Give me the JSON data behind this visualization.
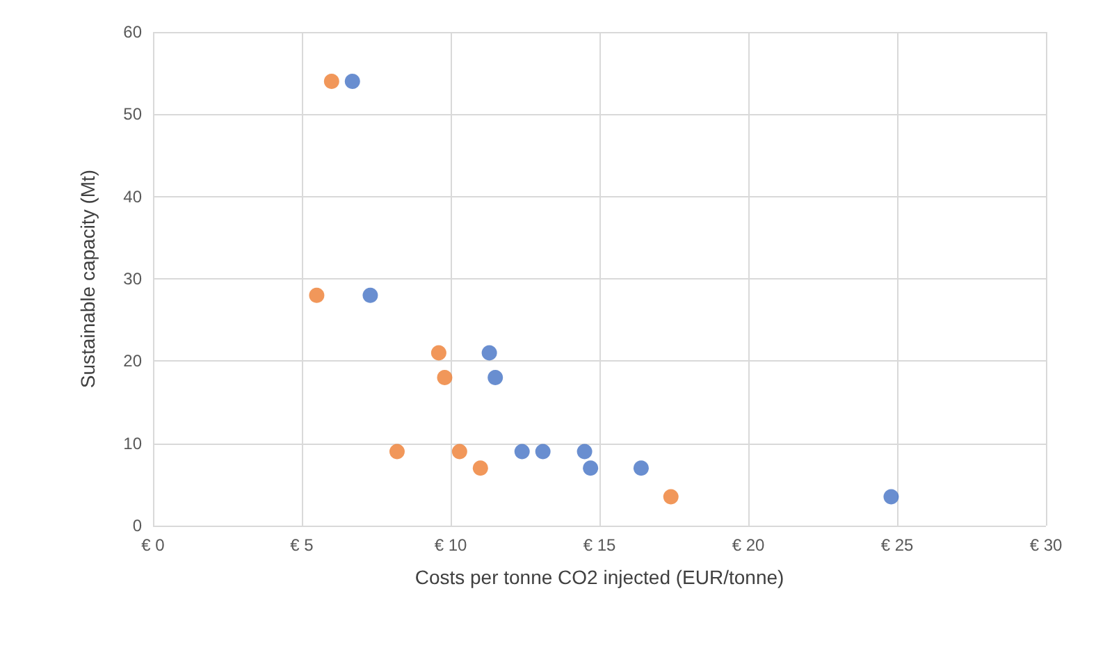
{
  "chart_data": {
    "type": "scatter",
    "xlabel": "Costs per tonne CO2 injected (EUR/tonne)",
    "ylabel": "Sustainable capacity (Mt)",
    "series": [
      {
        "color": "#ed7d31",
        "x": [
          6.0,
          5.5,
          9.6,
          9.8,
          8.2,
          10.3,
          11.0,
          17.4
        ],
        "values": [
          54,
          28,
          21,
          18,
          9,
          9,
          7,
          3.5
        ]
      },
      {
        "color": "#4472c4",
        "x": [
          6.7,
          7.3,
          11.3,
          11.5,
          12.4,
          13.1,
          14.5,
          14.7,
          16.4,
          24.8
        ],
        "values": [
          54,
          28,
          21,
          18,
          9,
          9,
          9,
          7,
          7,
          3.5
        ]
      }
    ],
    "xlim": [
      0,
      30
    ],
    "xticks": [
      {
        "value": 0,
        "label": "€ 0"
      },
      {
        "value": 5,
        "label": "€ 5"
      },
      {
        "value": 10,
        "label": "€ 10"
      },
      {
        "value": 15,
        "label": "€ 15"
      },
      {
        "value": 20,
        "label": "€ 20"
      },
      {
        "value": 25,
        "label": "€ 25"
      },
      {
        "value": 30,
        "label": "€ 30"
      }
    ],
    "ylim": [
      0,
      60
    ],
    "yticks": [
      0,
      10,
      20,
      30,
      40,
      50,
      60
    ],
    "grid": true,
    "marker": "circle"
  }
}
